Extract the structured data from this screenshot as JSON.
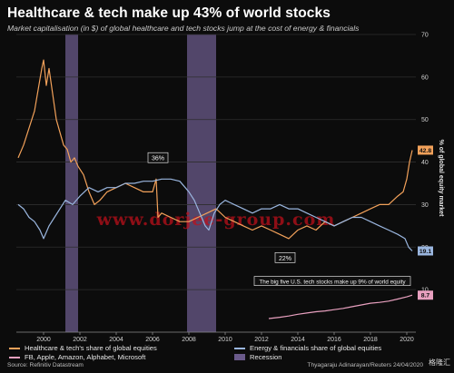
{
  "title": "Healthcare & tech make up 43% of world stocks",
  "subtitle": "Market capitalisation (in $) of global healthcare and tech stocks jump at the cost of energy & financials",
  "source": "Source: Refinitiv Datastream",
  "credit": "Thyagaraju Adinarayan/Reuters 24/04/2020",
  "watermark": "www.dorjee-group.com",
  "logo_text": "格隆汇",
  "colors": {
    "background": "#0c0c0c",
    "healthcare_tech": "#f2a15a",
    "energy_financials": "#9ab6df",
    "big_five": "#e8a0bf",
    "recession": "#6a5a8a",
    "grid": "#2e2e2e",
    "watermark": "#c0101a"
  },
  "chart_data": {
    "type": "line",
    "ylabel": "% of global equity market",
    "xlim": [
      1998.5,
      2020.5
    ],
    "ylim": [
      0,
      70
    ],
    "x_ticks": [
      2000,
      2002,
      2004,
      2006,
      2008,
      2010,
      2012,
      2014,
      2016,
      2018,
      2020
    ],
    "y_ticks": [
      10,
      20,
      30,
      40,
      50,
      60,
      70
    ],
    "recessions": [
      [
        2001.2,
        2001.9
      ],
      [
        2007.9,
        2009.5
      ]
    ],
    "series": [
      {
        "name": "Healthcare & tech's share of global equities",
        "color": "#f2a15a",
        "end_label": "42.8",
        "points": [
          [
            1998.6,
            41
          ],
          [
            1998.9,
            44
          ],
          [
            1999.2,
            48
          ],
          [
            1999.5,
            52
          ],
          [
            1999.7,
            57
          ],
          [
            1999.9,
            62
          ],
          [
            2000.0,
            64
          ],
          [
            2000.15,
            58
          ],
          [
            2000.3,
            62
          ],
          [
            2000.5,
            56
          ],
          [
            2000.7,
            50
          ],
          [
            2000.9,
            47
          ],
          [
            2001.1,
            44
          ],
          [
            2001.3,
            43
          ],
          [
            2001.5,
            40
          ],
          [
            2001.7,
            41
          ],
          [
            2001.9,
            39
          ],
          [
            2002.2,
            37
          ],
          [
            2002.5,
            33
          ],
          [
            2002.8,
            30
          ],
          [
            2003.1,
            31
          ],
          [
            2003.5,
            33
          ],
          [
            2004.0,
            34
          ],
          [
            2004.5,
            35
          ],
          [
            2005.0,
            34
          ],
          [
            2005.5,
            33
          ],
          [
            2006.0,
            33
          ],
          [
            2006.2,
            36
          ],
          [
            2006.3,
            27
          ],
          [
            2006.5,
            28
          ],
          [
            2007.0,
            27
          ],
          [
            2007.5,
            26
          ],
          [
            2008.0,
            26
          ],
          [
            2008.5,
            27
          ],
          [
            2009.0,
            28
          ],
          [
            2009.5,
            29
          ],
          [
            2010.0,
            27
          ],
          [
            2010.5,
            26
          ],
          [
            2011.0,
            25
          ],
          [
            2011.5,
            24
          ],
          [
            2012.0,
            25
          ],
          [
            2012.5,
            24
          ],
          [
            2013.0,
            23
          ],
          [
            2013.5,
            22
          ],
          [
            2014.0,
            24
          ],
          [
            2014.5,
            25
          ],
          [
            2015.0,
            24
          ],
          [
            2015.5,
            26
          ],
          [
            2016.0,
            25
          ],
          [
            2016.5,
            26
          ],
          [
            2017.0,
            27
          ],
          [
            2017.5,
            28
          ],
          [
            2018.0,
            29
          ],
          [
            2018.5,
            30
          ],
          [
            2019.0,
            30
          ],
          [
            2019.5,
            32
          ],
          [
            2019.8,
            33
          ],
          [
            2020.0,
            36
          ],
          [
            2020.15,
            40
          ],
          [
            2020.3,
            42.8
          ]
        ]
      },
      {
        "name": "Energy & financials share of global equities",
        "color": "#9ab6df",
        "end_label": "19.1",
        "points": [
          [
            1998.6,
            30
          ],
          [
            1998.9,
            29
          ],
          [
            1999.2,
            27
          ],
          [
            1999.5,
            26
          ],
          [
            1999.8,
            24
          ],
          [
            2000.0,
            22
          ],
          [
            2000.3,
            25
          ],
          [
            2000.6,
            27
          ],
          [
            2000.9,
            29
          ],
          [
            2001.2,
            31
          ],
          [
            2001.6,
            30
          ],
          [
            2002.0,
            32
          ],
          [
            2002.5,
            34
          ],
          [
            2003.0,
            33
          ],
          [
            2003.5,
            34
          ],
          [
            2004.0,
            34
          ],
          [
            2004.5,
            35
          ],
          [
            2005.0,
            35
          ],
          [
            2005.5,
            35.5
          ],
          [
            2006.0,
            35.5
          ],
          [
            2006.5,
            36
          ],
          [
            2007.0,
            36
          ],
          [
            2007.5,
            35.5
          ],
          [
            2007.8,
            34
          ],
          [
            2008.0,
            33
          ],
          [
            2008.3,
            31
          ],
          [
            2008.6,
            28
          ],
          [
            2008.9,
            25
          ],
          [
            2009.1,
            24
          ],
          [
            2009.4,
            28
          ],
          [
            2009.7,
            30
          ],
          [
            2010.0,
            31
          ],
          [
            2010.5,
            30
          ],
          [
            2011.0,
            29
          ],
          [
            2011.5,
            28
          ],
          [
            2012.0,
            29
          ],
          [
            2012.5,
            29
          ],
          [
            2013.0,
            30
          ],
          [
            2013.5,
            29
          ],
          [
            2014.0,
            29
          ],
          [
            2014.5,
            28
          ],
          [
            2015.0,
            27
          ],
          [
            2015.5,
            26
          ],
          [
            2016.0,
            25
          ],
          [
            2016.5,
            26
          ],
          [
            2017.0,
            27
          ],
          [
            2017.5,
            27
          ],
          [
            2018.0,
            26
          ],
          [
            2018.5,
            25
          ],
          [
            2019.0,
            24
          ],
          [
            2019.5,
            23
          ],
          [
            2019.9,
            22
          ],
          [
            2020.1,
            20
          ],
          [
            2020.3,
            19.1
          ]
        ]
      },
      {
        "name": "FB, Apple, Amazon, Alphabet, Microsoft",
        "color": "#e8a0bf",
        "end_label": "8.7",
        "points": [
          [
            2012.4,
            3.2
          ],
          [
            2013.0,
            3.5
          ],
          [
            2013.5,
            3.8
          ],
          [
            2014.0,
            4.2
          ],
          [
            2014.5,
            4.5
          ],
          [
            2015.0,
            4.8
          ],
          [
            2015.5,
            5.0
          ],
          [
            2016.0,
            5.3
          ],
          [
            2016.5,
            5.6
          ],
          [
            2017.0,
            6.0
          ],
          [
            2017.5,
            6.4
          ],
          [
            2018.0,
            6.8
          ],
          [
            2018.5,
            7.0
          ],
          [
            2019.0,
            7.3
          ],
          [
            2019.5,
            7.8
          ],
          [
            2020.0,
            8.3
          ],
          [
            2020.3,
            8.7
          ]
        ]
      }
    ],
    "annotations": [
      {
        "text": "36%",
        "x": 2006.3,
        "y": 40.5
      },
      {
        "text": "22%",
        "x": 2013.3,
        "y": 17
      },
      {
        "text": "The big five U.S. tech stocks make up 9% of world equity",
        "x": 2015.9,
        "y": 11.5
      }
    ],
    "legend": [
      {
        "label": "Healthcare & tech's share of global equities",
        "type": "line",
        "color": "#f2a15a"
      },
      {
        "label": "Energy & financials share of global equities",
        "type": "line",
        "color": "#9ab6df"
      },
      {
        "label": "FB, Apple, Amazon, Alphabet, Microsoft",
        "type": "line",
        "color": "#e8a0bf"
      },
      {
        "label": "Recession",
        "type": "box",
        "color": "#6a5a8a"
      }
    ]
  }
}
